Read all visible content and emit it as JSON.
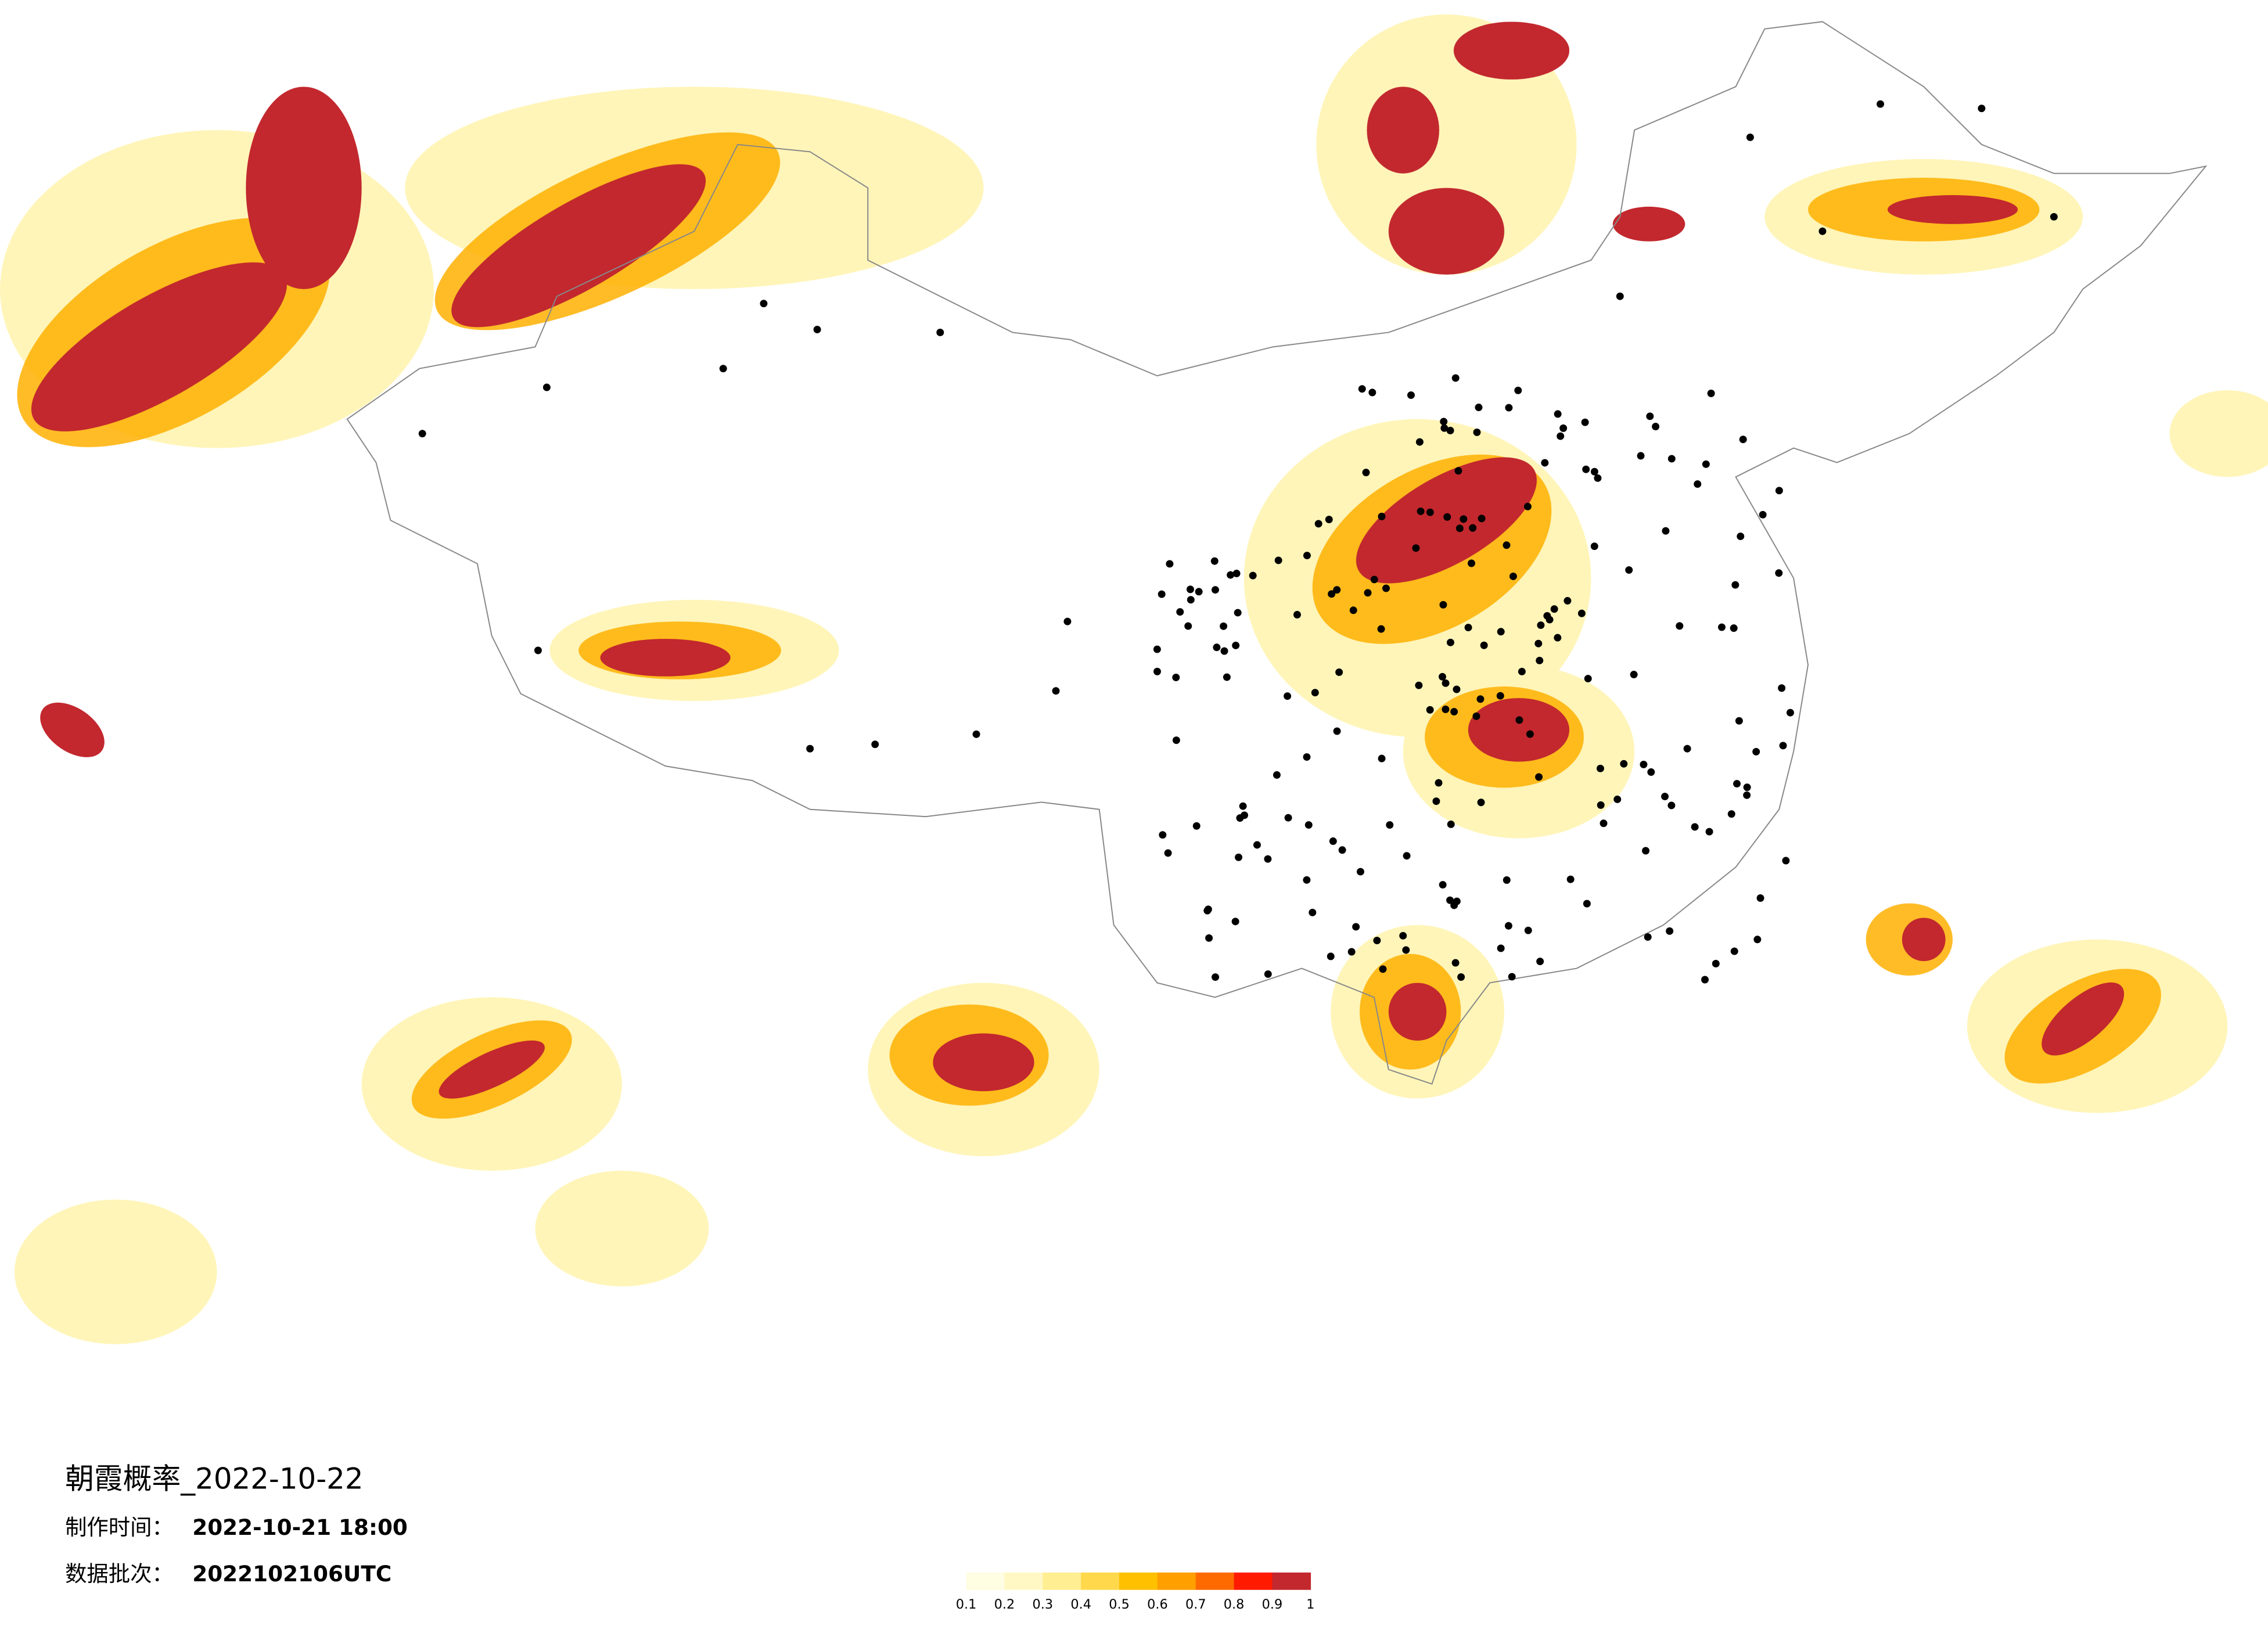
{
  "map": {
    "title": "朝霞概率_2022-10-22",
    "info": [
      {
        "label": "制作时间：",
        "value": "2022-10-21 18:00"
      },
      {
        "label": "数据批次：",
        "value": "2022102106UTC"
      }
    ],
    "legend": {
      "colors": [
        "#fffde2",
        "#fff8c4",
        "#ffee92",
        "#ffd84c",
        "#ffc000",
        "#ff9f00",
        "#ff6a00",
        "#ff1a00",
        "#c2282e"
      ],
      "ticks": [
        0.1,
        0.2,
        0.3,
        0.4,
        0.5,
        0.6,
        0.7,
        0.8,
        0.9,
        1
      ]
    }
  }
}
